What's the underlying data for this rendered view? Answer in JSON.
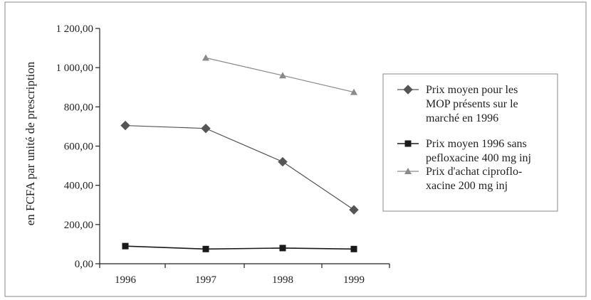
{
  "chart_data": {
    "type": "line",
    "title": "",
    "xlabel": "",
    "ylabel": "en FCFA par unité de prescription",
    "categories": [
      "1996",
      "1997",
      "1998",
      "1999"
    ],
    "y_tick_labels": [
      "0,00",
      "200,00",
      "400,00",
      "600,00",
      "800,00",
      "1 000,00",
      "1 200,00"
    ],
    "y_ticks": [
      0,
      200,
      400,
      600,
      800,
      1000,
      1200
    ],
    "ylim": [
      0,
      1200
    ],
    "grid": false,
    "legend_position": "right",
    "series": [
      {
        "name": "Prix moyen pour les MOP présents sur le marché en 1996",
        "legend_lines": [
          "Prix moyen pour les",
          "MOP présents sur le",
          "marché en 1996"
        ],
        "marker": "diamond",
        "color": "#555555",
        "values": [
          705,
          690,
          520,
          275
        ]
      },
      {
        "name": "Prix moyen 1996 sans pefloxacine 400 mg inj",
        "legend_lines": [
          "Prix moyen 1996 sans",
          "pefloxacine 400 mg inj"
        ],
        "marker": "square",
        "color": "#1a1a1a",
        "values": [
          90,
          75,
          80,
          75
        ]
      },
      {
        "name": "Prix d'achat ciproflo-xacine 200 mg inj",
        "legend_lines": [
          "Prix d'achat ciproflo-",
          "xacine 200 mg inj"
        ],
        "marker": "triangle",
        "color": "#8a8a8a",
        "values": [
          null,
          1050,
          960,
          875
        ]
      }
    ]
  }
}
